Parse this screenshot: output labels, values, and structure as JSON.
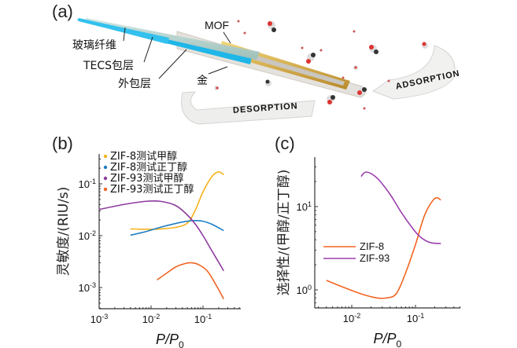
{
  "panel_a": {
    "label": "(a)",
    "callouts": {
      "fiber": "玻璃纤维",
      "tecs": "TECS包层",
      "outer": "外包层",
      "gold": "金",
      "mof": "MOF"
    },
    "arrows": {
      "adsorption": "ADSORPTION",
      "desorption": "DESORPTION"
    }
  },
  "chart_data": [
    {
      "type": "line",
      "panel_label": "(b)",
      "title": "",
      "xlabel": "P/P0",
      "ylabel": "灵敏度/(RIU/s)",
      "xscale": "log",
      "yscale": "log",
      "xlim": [
        0.001,
        0.5
      ],
      "ylim": [
        0.0004,
        0.3
      ],
      "xticks": [
        "10^-3",
        "10^-2",
        "10^-1"
      ],
      "yticks": [
        "10^-3",
        "10^-2",
        "10^-1"
      ],
      "legend_position": "top-left",
      "series": [
        {
          "name": "ZIF-8测试甲醇",
          "color": "#f5b21c",
          "x": [
            0.004,
            0.008,
            0.015,
            0.03,
            0.05,
            0.07,
            0.1,
            0.15,
            0.2,
            0.25
          ],
          "y": [
            0.0135,
            0.0133,
            0.0135,
            0.0145,
            0.0175,
            0.03,
            0.07,
            0.14,
            0.17,
            0.15
          ]
        },
        {
          "name": "ZIF-8测试正丁醇",
          "color": "#1f7ec4",
          "x": [
            0.004,
            0.008,
            0.015,
            0.03,
            0.05,
            0.07,
            0.1,
            0.15,
            0.25
          ],
          "y": [
            0.0102,
            0.012,
            0.0145,
            0.0172,
            0.019,
            0.0195,
            0.019,
            0.0165,
            0.0125
          ]
        },
        {
          "name": "ZIF-93测试甲醇",
          "color": "#8e3a9e",
          "x": [
            0.001,
            0.003,
            0.008,
            0.015,
            0.03,
            0.05,
            0.07,
            0.1,
            0.15,
            0.25
          ],
          "y": [
            0.032,
            0.04,
            0.046,
            0.046,
            0.038,
            0.025,
            0.017,
            0.01,
            0.005,
            0.0021
          ]
        },
        {
          "name": "ZIF-93测试正丁醇",
          "color": "#f26522",
          "x": [
            0.013,
            0.02,
            0.03,
            0.045,
            0.06,
            0.08,
            0.12,
            0.18,
            0.25
          ],
          "y": [
            0.0014,
            0.0019,
            0.0025,
            0.0029,
            0.003,
            0.0028,
            0.0021,
            0.0011,
            0.0006
          ]
        }
      ]
    },
    {
      "type": "line",
      "panel_label": "(c)",
      "title": "",
      "xlabel": "P/P0",
      "ylabel": "选择性/(甲醇/正丁醇)",
      "xscale": "log",
      "yscale": "log",
      "xlim": [
        0.003,
        0.5
      ],
      "ylim": [
        0.6,
        40
      ],
      "xticks": [
        "10^-2",
        "10^-1"
      ],
      "yticks": [
        "10^0",
        "10^1"
      ],
      "legend_position": "center-left",
      "series": [
        {
          "name": "ZIF-8",
          "color": "#f26522",
          "x": [
            0.004,
            0.008,
            0.015,
            0.025,
            0.035,
            0.05,
            0.07,
            0.1,
            0.14,
            0.2,
            0.25
          ],
          "y": [
            1.3,
            1.05,
            0.88,
            0.8,
            0.8,
            0.9,
            1.6,
            3.5,
            8.0,
            12.5,
            12.0
          ]
        },
        {
          "name": "ZIF-93",
          "color": "#9b3fae",
          "x": [
            0.014,
            0.017,
            0.025,
            0.04,
            0.06,
            0.09,
            0.12,
            0.17,
            0.25
          ],
          "y": [
            23,
            26,
            22,
            14,
            8.5,
            5.5,
            4.3,
            3.7,
            3.6
          ]
        }
      ]
    }
  ]
}
